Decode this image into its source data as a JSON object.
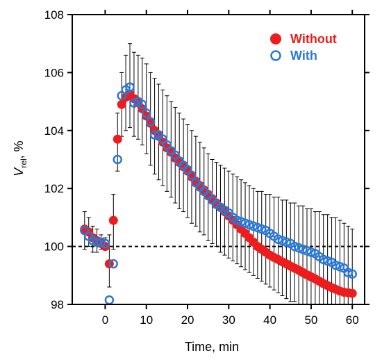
{
  "chart_data": {
    "type": "scatter",
    "title": "",
    "xlabel": "Time, min",
    "ylabel_main": "V",
    "ylabel_sub": "rel",
    "ylabel_rest": ", %",
    "xlim": [
      -8,
      63
    ],
    "ylim": [
      98,
      108
    ],
    "xticks": [
      0,
      10,
      20,
      30,
      40,
      50,
      60
    ],
    "yticks": [
      98,
      100,
      102,
      104,
      106,
      108
    ],
    "reference_line_y": 100,
    "legend_position": "top-right",
    "series": [
      {
        "name": "Without",
        "color": "#ee1c1c",
        "marker": "filled-circle",
        "points": [
          [
            -5,
            100.6
          ],
          [
            -4,
            100.5
          ],
          [
            -3,
            100.3
          ],
          [
            -2,
            100.2
          ],
          [
            -1,
            100.1
          ],
          [
            0,
            100.0
          ],
          [
            1,
            99.4
          ],
          [
            2,
            100.9
          ],
          [
            3,
            103.7
          ],
          [
            4,
            104.9
          ],
          [
            5,
            105.15
          ],
          [
            6,
            105.25
          ],
          [
            7,
            105.1
          ],
          [
            8,
            104.95
          ],
          [
            9,
            104.75
          ],
          [
            10,
            104.5
          ],
          [
            11,
            104.25
          ],
          [
            12,
            104.0
          ],
          [
            13,
            103.8
          ],
          [
            14,
            103.6
          ],
          [
            15,
            103.4
          ],
          [
            16,
            103.25
          ],
          [
            17,
            103.05
          ],
          [
            18,
            102.9
          ],
          [
            19,
            102.75
          ],
          [
            20,
            102.6
          ],
          [
            21,
            102.4
          ],
          [
            22,
            102.25
          ],
          [
            23,
            102.1
          ],
          [
            24,
            101.95
          ],
          [
            25,
            101.8
          ],
          [
            26,
            101.65
          ],
          [
            27,
            101.5
          ],
          [
            28,
            101.35
          ],
          [
            29,
            101.2
          ],
          [
            30,
            101.05
          ],
          [
            31,
            100.9
          ],
          [
            32,
            100.75
          ],
          [
            33,
            100.6
          ],
          [
            34,
            100.45
          ],
          [
            35,
            100.3
          ],
          [
            36,
            100.15
          ],
          [
            37,
            100.0
          ],
          [
            38,
            99.9
          ],
          [
            39,
            99.8
          ],
          [
            40,
            99.7
          ],
          [
            41,
            99.62
          ],
          [
            42,
            99.55
          ],
          [
            43,
            99.47
          ],
          [
            44,
            99.4
          ],
          [
            45,
            99.32
          ],
          [
            46,
            99.25
          ],
          [
            47,
            99.18
          ],
          [
            48,
            99.1
          ],
          [
            49,
            99.02
          ],
          [
            50,
            98.95
          ],
          [
            51,
            98.88
          ],
          [
            52,
            98.8
          ],
          [
            53,
            98.72
          ],
          [
            54,
            98.65
          ],
          [
            55,
            98.58
          ],
          [
            56,
            98.52
          ],
          [
            57,
            98.46
          ],
          [
            58,
            98.42
          ],
          [
            59,
            98.4
          ],
          [
            60,
            98.38
          ]
        ]
      },
      {
        "name": "With",
        "color": "#2a78d6",
        "marker": "open-circle",
        "points": [
          [
            -5,
            100.55
          ],
          [
            -4,
            100.35
          ],
          [
            -3,
            100.2
          ],
          [
            -2,
            100.15
          ],
          [
            -1,
            100.15
          ],
          [
            0,
            100.1
          ],
          [
            1,
            98.15
          ],
          [
            2,
            99.4
          ],
          [
            3,
            103.0
          ],
          [
            4,
            105.2
          ],
          [
            5,
            105.4
          ],
          [
            6,
            105.5
          ],
          [
            7,
            104.95
          ],
          [
            8,
            105.0
          ],
          [
            9,
            104.9
          ],
          [
            10,
            104.6
          ],
          [
            11,
            104.3
          ],
          [
            12,
            103.85
          ],
          [
            13,
            103.85
          ],
          [
            14,
            103.7
          ],
          [
            15,
            103.5
          ],
          [
            16,
            103.3
          ],
          [
            17,
            103.15
          ],
          [
            18,
            102.95
          ],
          [
            19,
            102.8
          ],
          [
            20,
            102.65
          ],
          [
            21,
            102.45
          ],
          [
            22,
            102.2
          ],
          [
            23,
            102.05
          ],
          [
            24,
            101.9
          ],
          [
            25,
            101.75
          ],
          [
            26,
            101.6
          ],
          [
            27,
            101.45
          ],
          [
            28,
            101.35
          ],
          [
            29,
            101.25
          ],
          [
            30,
            101.15
          ],
          [
            31,
            101.0
          ],
          [
            32,
            100.9
          ],
          [
            33,
            100.85
          ],
          [
            34,
            100.8
          ],
          [
            35,
            100.75
          ],
          [
            36,
            100.7
          ],
          [
            37,
            100.65
          ],
          [
            38,
            100.6
          ],
          [
            39,
            100.55
          ],
          [
            40,
            100.45
          ],
          [
            41,
            100.35
          ],
          [
            42,
            100.25
          ],
          [
            43,
            100.2
          ],
          [
            44,
            100.15
          ],
          [
            45,
            100.1
          ],
          [
            46,
            100.0
          ],
          [
            47,
            99.95
          ],
          [
            48,
            99.9
          ],
          [
            49,
            99.85
          ],
          [
            50,
            99.8
          ],
          [
            51,
            99.75
          ],
          [
            52,
            99.65
          ],
          [
            53,
            99.55
          ],
          [
            54,
            99.5
          ],
          [
            55,
            99.45
          ],
          [
            56,
            99.35
          ],
          [
            57,
            99.3
          ],
          [
            58,
            99.25
          ],
          [
            59,
            99.1
          ],
          [
            60,
            99.05
          ]
        ]
      }
    ],
    "error_bars": [
      [
        -5,
        99.9,
        101.2
      ],
      [
        -4,
        100.0,
        101.0
      ],
      [
        -3,
        99.8,
        100.7
      ],
      [
        -2,
        99.8,
        100.6
      ],
      [
        -1,
        99.9,
        100.4
      ],
      [
        0,
        99.9,
        100.3
      ],
      [
        1,
        98.6,
        100.4
      ],
      [
        2,
        99.9,
        101.8
      ],
      [
        3,
        102.6,
        104.6
      ],
      [
        4,
        103.8,
        106.0
      ],
      [
        5,
        104.0,
        106.6
      ],
      [
        6,
        104.1,
        107.0
      ],
      [
        7,
        103.8,
        106.7
      ],
      [
        8,
        103.7,
        106.6
      ],
      [
        9,
        103.5,
        106.5
      ],
      [
        10,
        103.2,
        106.3
      ],
      [
        11,
        102.8,
        106.0
      ],
      [
        12,
        102.5,
        105.8
      ],
      [
        13,
        102.3,
        105.6
      ],
      [
        14,
        102.1,
        105.4
      ],
      [
        15,
        101.9,
        105.2
      ],
      [
        16,
        101.7,
        105.0
      ],
      [
        17,
        101.5,
        104.8
      ],
      [
        18,
        101.3,
        104.6
      ],
      [
        19,
        101.2,
        104.4
      ],
      [
        20,
        101.0,
        104.2
      ],
      [
        21,
        100.8,
        104.0
      ],
      [
        22,
        100.7,
        103.8
      ],
      [
        23,
        100.5,
        103.6
      ],
      [
        24,
        100.4,
        103.4
      ],
      [
        25,
        100.2,
        103.2
      ],
      [
        26,
        100.1,
        103.0
      ],
      [
        27,
        100.0,
        102.9
      ],
      [
        28,
        99.8,
        102.8
      ],
      [
        29,
        99.7,
        102.7
      ],
      [
        30,
        99.6,
        102.6
      ],
      [
        31,
        99.5,
        102.5
      ],
      [
        32,
        99.4,
        102.4
      ],
      [
        33,
        99.3,
        102.3
      ],
      [
        34,
        99.2,
        102.2
      ],
      [
        35,
        99.1,
        102.1
      ],
      [
        36,
        99.0,
        102.0
      ],
      [
        37,
        98.9,
        101.9
      ],
      [
        38,
        98.8,
        101.9
      ],
      [
        39,
        98.7,
        101.8
      ],
      [
        40,
        98.6,
        101.8
      ],
      [
        41,
        98.5,
        101.7
      ],
      [
        42,
        98.4,
        101.7
      ],
      [
        43,
        98.3,
        101.6
      ],
      [
        44,
        98.2,
        101.6
      ],
      [
        45,
        98.1,
        101.5
      ],
      [
        46,
        98.1,
        101.5
      ],
      [
        47,
        98.0,
        101.4
      ],
      [
        48,
        98.0,
        101.4
      ],
      [
        49,
        98.0,
        101.3
      ],
      [
        50,
        98.0,
        101.3
      ],
      [
        51,
        98.0,
        101.2
      ],
      [
        52,
        98.0,
        101.2
      ],
      [
        53,
        98.0,
        101.1
      ],
      [
        54,
        98.0,
        101.1
      ],
      [
        55,
        98.0,
        101.0
      ],
      [
        56,
        98.0,
        101.0
      ],
      [
        57,
        98.0,
        100.9
      ],
      [
        58,
        98.0,
        100.8
      ],
      [
        59,
        98.0,
        100.7
      ],
      [
        60,
        98.0,
        100.6
      ]
    ]
  }
}
